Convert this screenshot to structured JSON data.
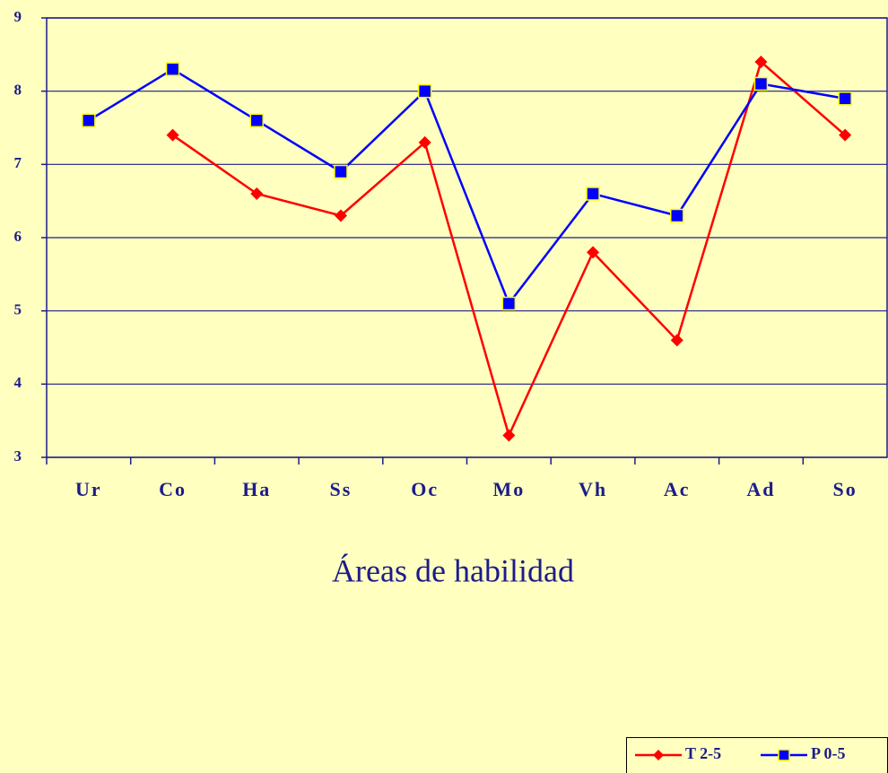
{
  "chart_data": {
    "type": "line",
    "xlabel": "Áreas de habilidad",
    "categories": [
      "Ur",
      "Co",
      "Ha",
      "Ss",
      "Oc",
      "Mo",
      "Vh",
      "Ac",
      "Ad",
      "So"
    ],
    "series": [
      {
        "name": "T 2-5",
        "color": "#ff0000",
        "marker": "diamond",
        "values": [
          null,
          7.4,
          6.6,
          6.3,
          7.3,
          3.3,
          5.8,
          4.6,
          8.4,
          7.4
        ]
      },
      {
        "name": "P 0-5",
        "color": "#0000ff",
        "marker": "square",
        "values": [
          7.6,
          8.3,
          7.6,
          6.9,
          8.0,
          5.1,
          6.6,
          6.3,
          8.1,
          7.9
        ]
      }
    ],
    "ylim": [
      3,
      9
    ],
    "yticks": [
      3,
      4,
      5,
      6,
      7,
      8,
      9
    ],
    "grid": true,
    "legend": "lower right"
  }
}
